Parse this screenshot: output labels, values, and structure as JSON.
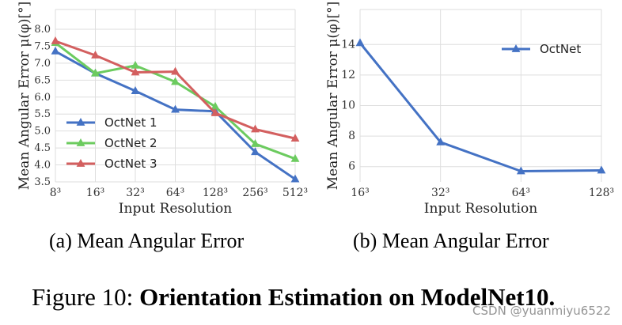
{
  "chart_data": [
    {
      "type": "line",
      "title": "",
      "xlabel": "Input Resolution",
      "ylabel": "Mean Angular Error μ(φ)[°]",
      "categories": [
        "8³",
        "16³",
        "32³",
        "64³",
        "128³",
        "256³",
        "512³"
      ],
      "yticks": [
        "3.5",
        "4.0",
        "4.5",
        "5.0",
        "5.5",
        "6.0",
        "6.5",
        "7.0",
        "7.5",
        "8.0"
      ],
      "ylim": [
        3.5,
        8.0
      ],
      "grid": true,
      "legend": "bottom-left",
      "series": [
        {
          "name": "OctNet 1",
          "color": "#4472C4",
          "marker": "triangle",
          "values": [
            7.35,
            6.7,
            6.18,
            5.63,
            5.58,
            4.38,
            3.58
          ]
        },
        {
          "name": "OctNet 2",
          "color": "#6CCB5F",
          "marker": "triangle",
          "values": [
            7.6,
            6.7,
            6.93,
            6.45,
            5.72,
            4.62,
            4.18
          ]
        },
        {
          "name": "OctNet 3",
          "color": "#D35F5F",
          "marker": "triangle",
          "values": [
            7.65,
            7.23,
            6.73,
            6.75,
            5.53,
            5.05,
            4.78
          ]
        }
      ]
    },
    {
      "type": "line",
      "title": "",
      "xlabel": "Input Resolution",
      "ylabel": "Mean Angular Error μ(φ)[°]",
      "categories": [
        "16³",
        "32³",
        "64³",
        "128³"
      ],
      "yticks": [
        "6",
        "8",
        "10",
        "12",
        "14"
      ],
      "ylim": [
        5,
        15
      ],
      "grid": true,
      "legend": "top-right",
      "series": [
        {
          "name": "OctNet",
          "color": "#4472C4",
          "marker": "triangle",
          "values": [
            14.1,
            7.6,
            5.7,
            5.75
          ]
        }
      ]
    }
  ],
  "captions": {
    "a": "(a) Mean Angular Error",
    "b": "(b) Mean Angular Error"
  },
  "figure_caption": {
    "prefix": "Figure 10: ",
    "bold": "Orientation Estimation on ModelNet10."
  },
  "watermark": "CSDN @yuanmiyu6522"
}
